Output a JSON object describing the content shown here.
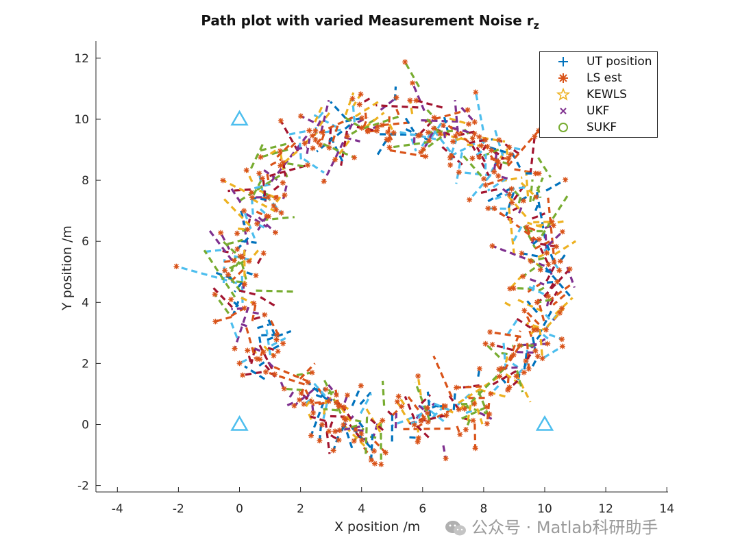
{
  "chart_data": {
    "type": "scatter",
    "title": "Path plot with varied Measurement Noise r",
    "title_subscript": "z",
    "xlabel": "X position /m",
    "ylabel": "Y position /m",
    "xlim": [
      -4.5,
      14
    ],
    "ylim": [
      -2.25,
      12.6
    ],
    "xticks": [
      -4,
      -2,
      0,
      2,
      4,
      6,
      8,
      10,
      12,
      14
    ],
    "yticks": [
      -2,
      0,
      2,
      4,
      6,
      8,
      10,
      12
    ],
    "grid": false,
    "legend_position": "top-right",
    "anchors": [
      {
        "name": "",
        "x": 0,
        "y": 10
      },
      {
        "name": "",
        "x": 0,
        "y": 0
      },
      {
        "name": "",
        "x": 10,
        "y": 0
      }
    ],
    "path": {
      "shape": "circle",
      "center": [
        5,
        5
      ],
      "radius": 5
    },
    "series": [
      {
        "name": "UT position",
        "marker": "+",
        "color": "#0072BD"
      },
      {
        "name": "LS est",
        "marker": "*",
        "color": "#D95319"
      },
      {
        "name": "KEWLS",
        "marker": "star",
        "color": "#EDB120"
      },
      {
        "name": "UKF",
        "marker": "x",
        "color": "#7E2F8E"
      },
      {
        "name": "SUKF",
        "marker": "o",
        "color": "#77AC30"
      }
    ],
    "dash_colors": [
      "#0072BD",
      "#D95319",
      "#EDB120",
      "#7E2F8E",
      "#77AC30",
      "#4DBEEE",
      "#A2142F"
    ],
    "anchor_color": "#4DBEEE"
  },
  "watermark": {
    "text": "公众号 · Matlab科研助手"
  }
}
